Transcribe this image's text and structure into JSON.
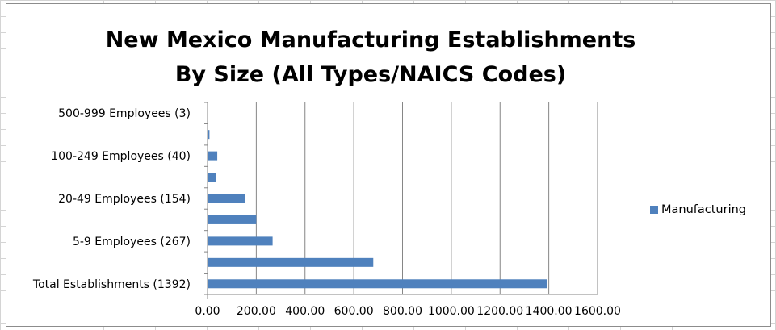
{
  "chart_data": {
    "type": "bar",
    "orientation": "horizontal",
    "title_lines": [
      "New Mexico Manufacturing Establishments",
      "By Size (All Types/NAICS Codes)"
    ],
    "categories": [
      "Total Establishments (1392)",
      "",
      "5-9 Employees (267)",
      "",
      "20-49 Employees (154)",
      "",
      "100-249 Employees (40)",
      "",
      "500-999 Employees (3)"
    ],
    "series": [
      {
        "name": "Manufacturing",
        "values": [
          1392,
          680,
          267,
          200,
          154,
          35,
          40,
          8,
          3
        ]
      }
    ],
    "xlim": [
      0,
      1600
    ],
    "x_ticks": [
      "0.00",
      "200.00",
      "400.00",
      "600.00",
      "800.00",
      "1000.00",
      "1200.00",
      "1400.00",
      "1600.00"
    ],
    "grid": true,
    "legend_position": "right",
    "colors": {
      "bar": "#4f81bd",
      "grid": "#868686",
      "axis": "#868686"
    }
  }
}
